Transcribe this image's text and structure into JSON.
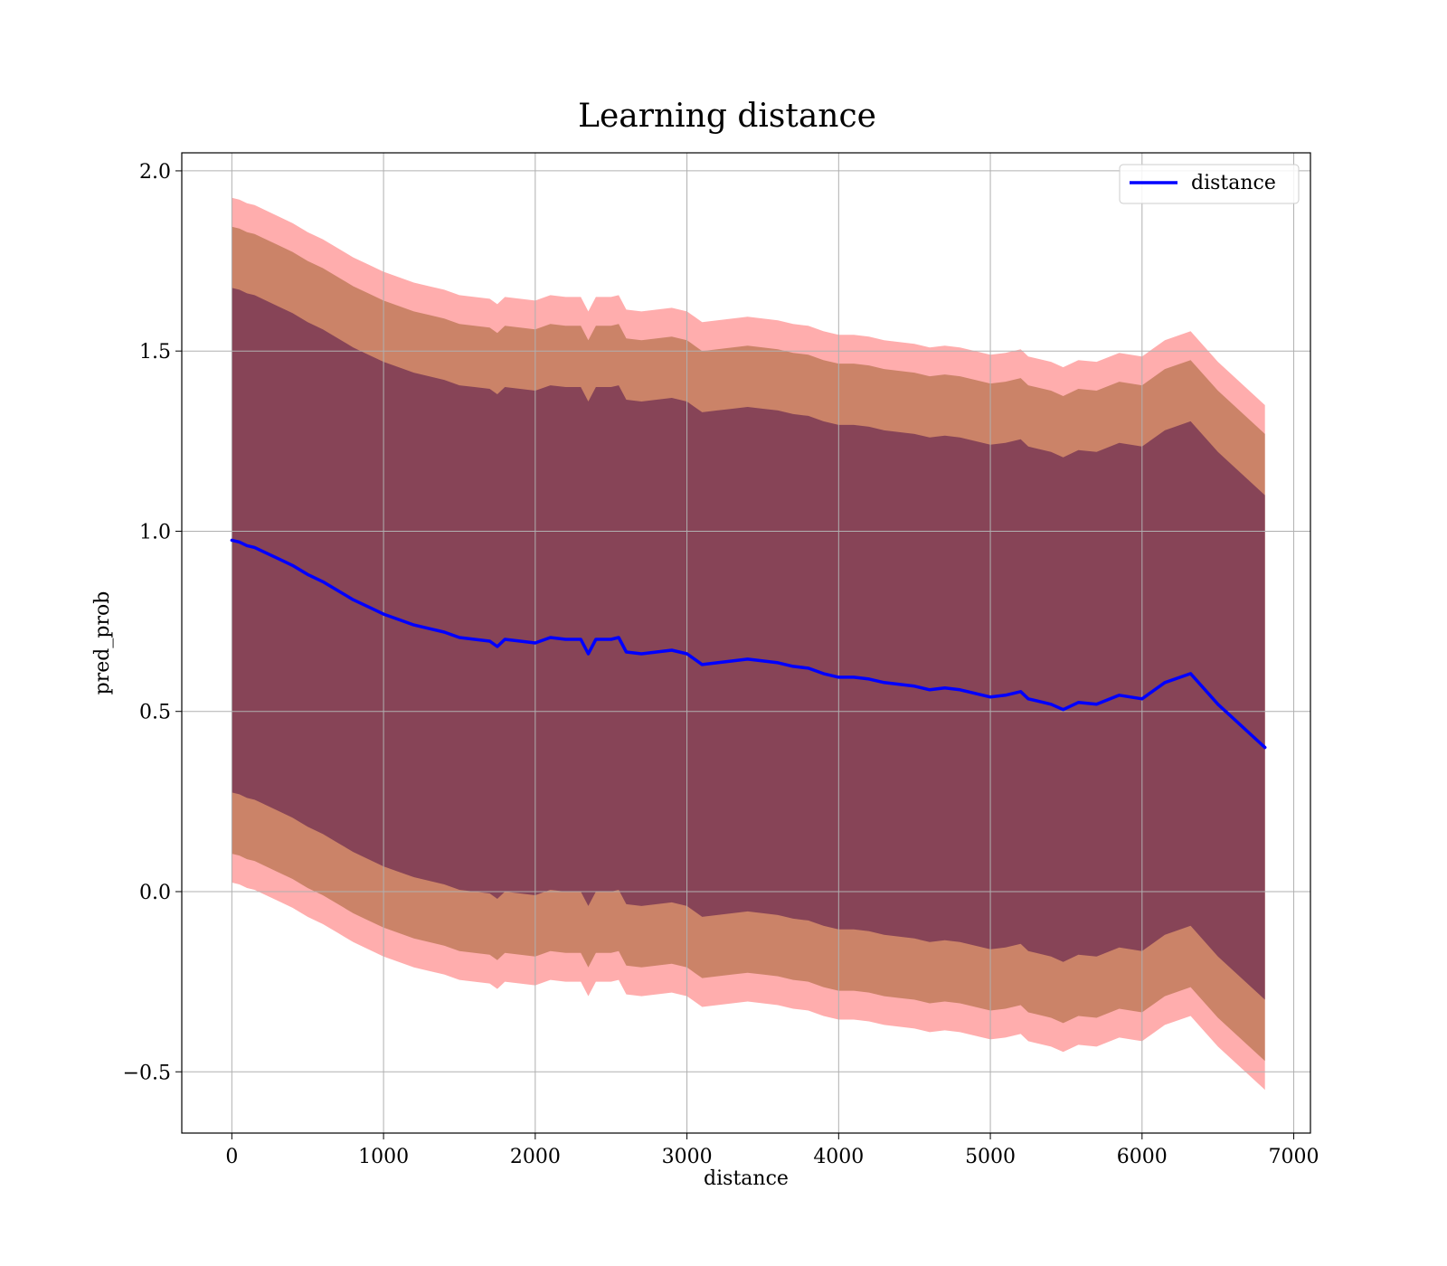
{
  "chart_data": {
    "type": "line",
    "title": "Learning distance",
    "xlabel": "distance",
    "ylabel": "pred_prob",
    "xlim": [
      -330,
      7110
    ],
    "ylim": [
      -0.67,
      2.05
    ],
    "xticks": [
      0,
      1000,
      2000,
      3000,
      4000,
      5000,
      6000,
      7000
    ],
    "xtick_labels": [
      "0",
      "1000",
      "2000",
      "3000",
      "4000",
      "5000",
      "6000",
      "7000"
    ],
    "yticks": [
      -0.5,
      0.0,
      0.5,
      1.0,
      1.5,
      2.0
    ],
    "ytick_labels": [
      "−0.5",
      "0.0",
      "0.5",
      "1.0",
      "1.5",
      "2.0"
    ],
    "grid": true,
    "legend": {
      "position": "top-right",
      "entries": [
        "distance"
      ]
    },
    "colors": {
      "line": "#0000ff",
      "band_outer": "#ff0000",
      "band_middle": "#a06030",
      "band_inner": "#6a2a50"
    },
    "band_halfwidths": {
      "inner": 0.7,
      "middle": 0.87,
      "outer": 0.95
    },
    "series": [
      {
        "name": "distance",
        "x": [
          0,
          50,
          100,
          150,
          200,
          300,
          400,
          500,
          600,
          700,
          800,
          900,
          1000,
          1100,
          1200,
          1300,
          1400,
          1500,
          1600,
          1700,
          1750,
          1800,
          1900,
          2000,
          2100,
          2200,
          2300,
          2350,
          2400,
          2500,
          2550,
          2600,
          2700,
          2800,
          2900,
          3000,
          3050,
          3100,
          3200,
          3300,
          3400,
          3500,
          3600,
          3700,
          3800,
          3900,
          4000,
          4100,
          4200,
          4300,
          4400,
          4500,
          4600,
          4700,
          4800,
          4900,
          5000,
          5100,
          5200,
          5250,
          5400,
          5480,
          5580,
          5700,
          5850,
          6000,
          6150,
          6320,
          6500,
          6810
        ],
        "y": [
          0.975,
          0.97,
          0.96,
          0.955,
          0.945,
          0.925,
          0.905,
          0.88,
          0.86,
          0.835,
          0.81,
          0.79,
          0.77,
          0.755,
          0.74,
          0.73,
          0.72,
          0.705,
          0.7,
          0.695,
          0.68,
          0.7,
          0.695,
          0.69,
          0.705,
          0.7,
          0.7,
          0.66,
          0.7,
          0.7,
          0.705,
          0.665,
          0.66,
          0.665,
          0.67,
          0.66,
          0.645,
          0.63,
          0.635,
          0.64,
          0.645,
          0.64,
          0.635,
          0.625,
          0.62,
          0.605,
          0.595,
          0.595,
          0.59,
          0.58,
          0.575,
          0.57,
          0.56,
          0.565,
          0.56,
          0.55,
          0.54,
          0.545,
          0.555,
          0.535,
          0.52,
          0.505,
          0.525,
          0.52,
          0.545,
          0.535,
          0.58,
          0.605,
          0.52,
          0.4
        ]
      }
    ]
  }
}
